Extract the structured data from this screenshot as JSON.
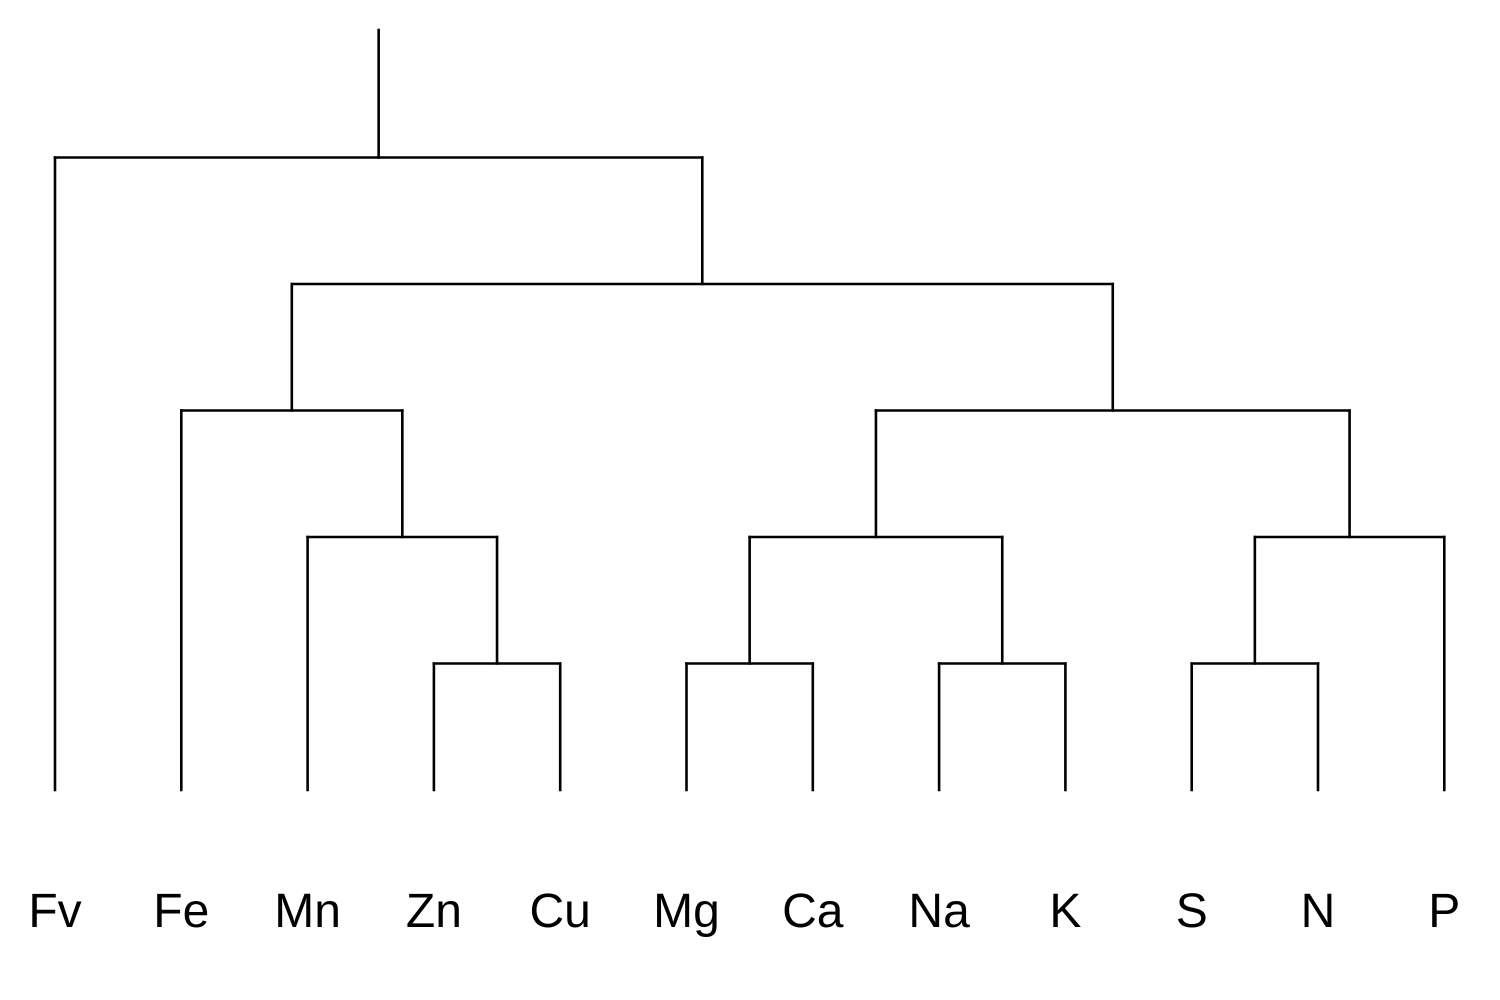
{
  "dendrogram": {
    "orientation": "top-down",
    "line_color": "#000000",
    "background": "#ffffff",
    "leaves": [
      "Fv",
      "Fe",
      "Mn",
      "Zn",
      "Cu",
      "Mg",
      "Ca",
      "Na",
      "K",
      "S",
      "N",
      "P"
    ],
    "merges": [
      {
        "id": "m1",
        "children": [
          "Zn",
          "Cu"
        ],
        "level": 1
      },
      {
        "id": "m2",
        "children": [
          "Mg",
          "Ca"
        ],
        "level": 1
      },
      {
        "id": "m3",
        "children": [
          "Na",
          "K"
        ],
        "level": 1
      },
      {
        "id": "m4",
        "children": [
          "S",
          "N"
        ],
        "level": 1
      },
      {
        "id": "m5",
        "children": [
          "Mn",
          "m1"
        ],
        "level": 2
      },
      {
        "id": "m6",
        "children": [
          "m2",
          "m3"
        ],
        "level": 2
      },
      {
        "id": "m7",
        "children": [
          "m4",
          "P"
        ],
        "level": 2
      },
      {
        "id": "m8",
        "children": [
          "Fe",
          "m5"
        ],
        "level": 3
      },
      {
        "id": "m9",
        "children": [
          "m6",
          "m7"
        ],
        "level": 3
      },
      {
        "id": "m10",
        "children": [
          "m8",
          "m9"
        ],
        "level": 4
      },
      {
        "id": "m11",
        "children": [
          "Fv",
          "m10"
        ],
        "level": 5
      }
    ],
    "max_level": 6
  }
}
